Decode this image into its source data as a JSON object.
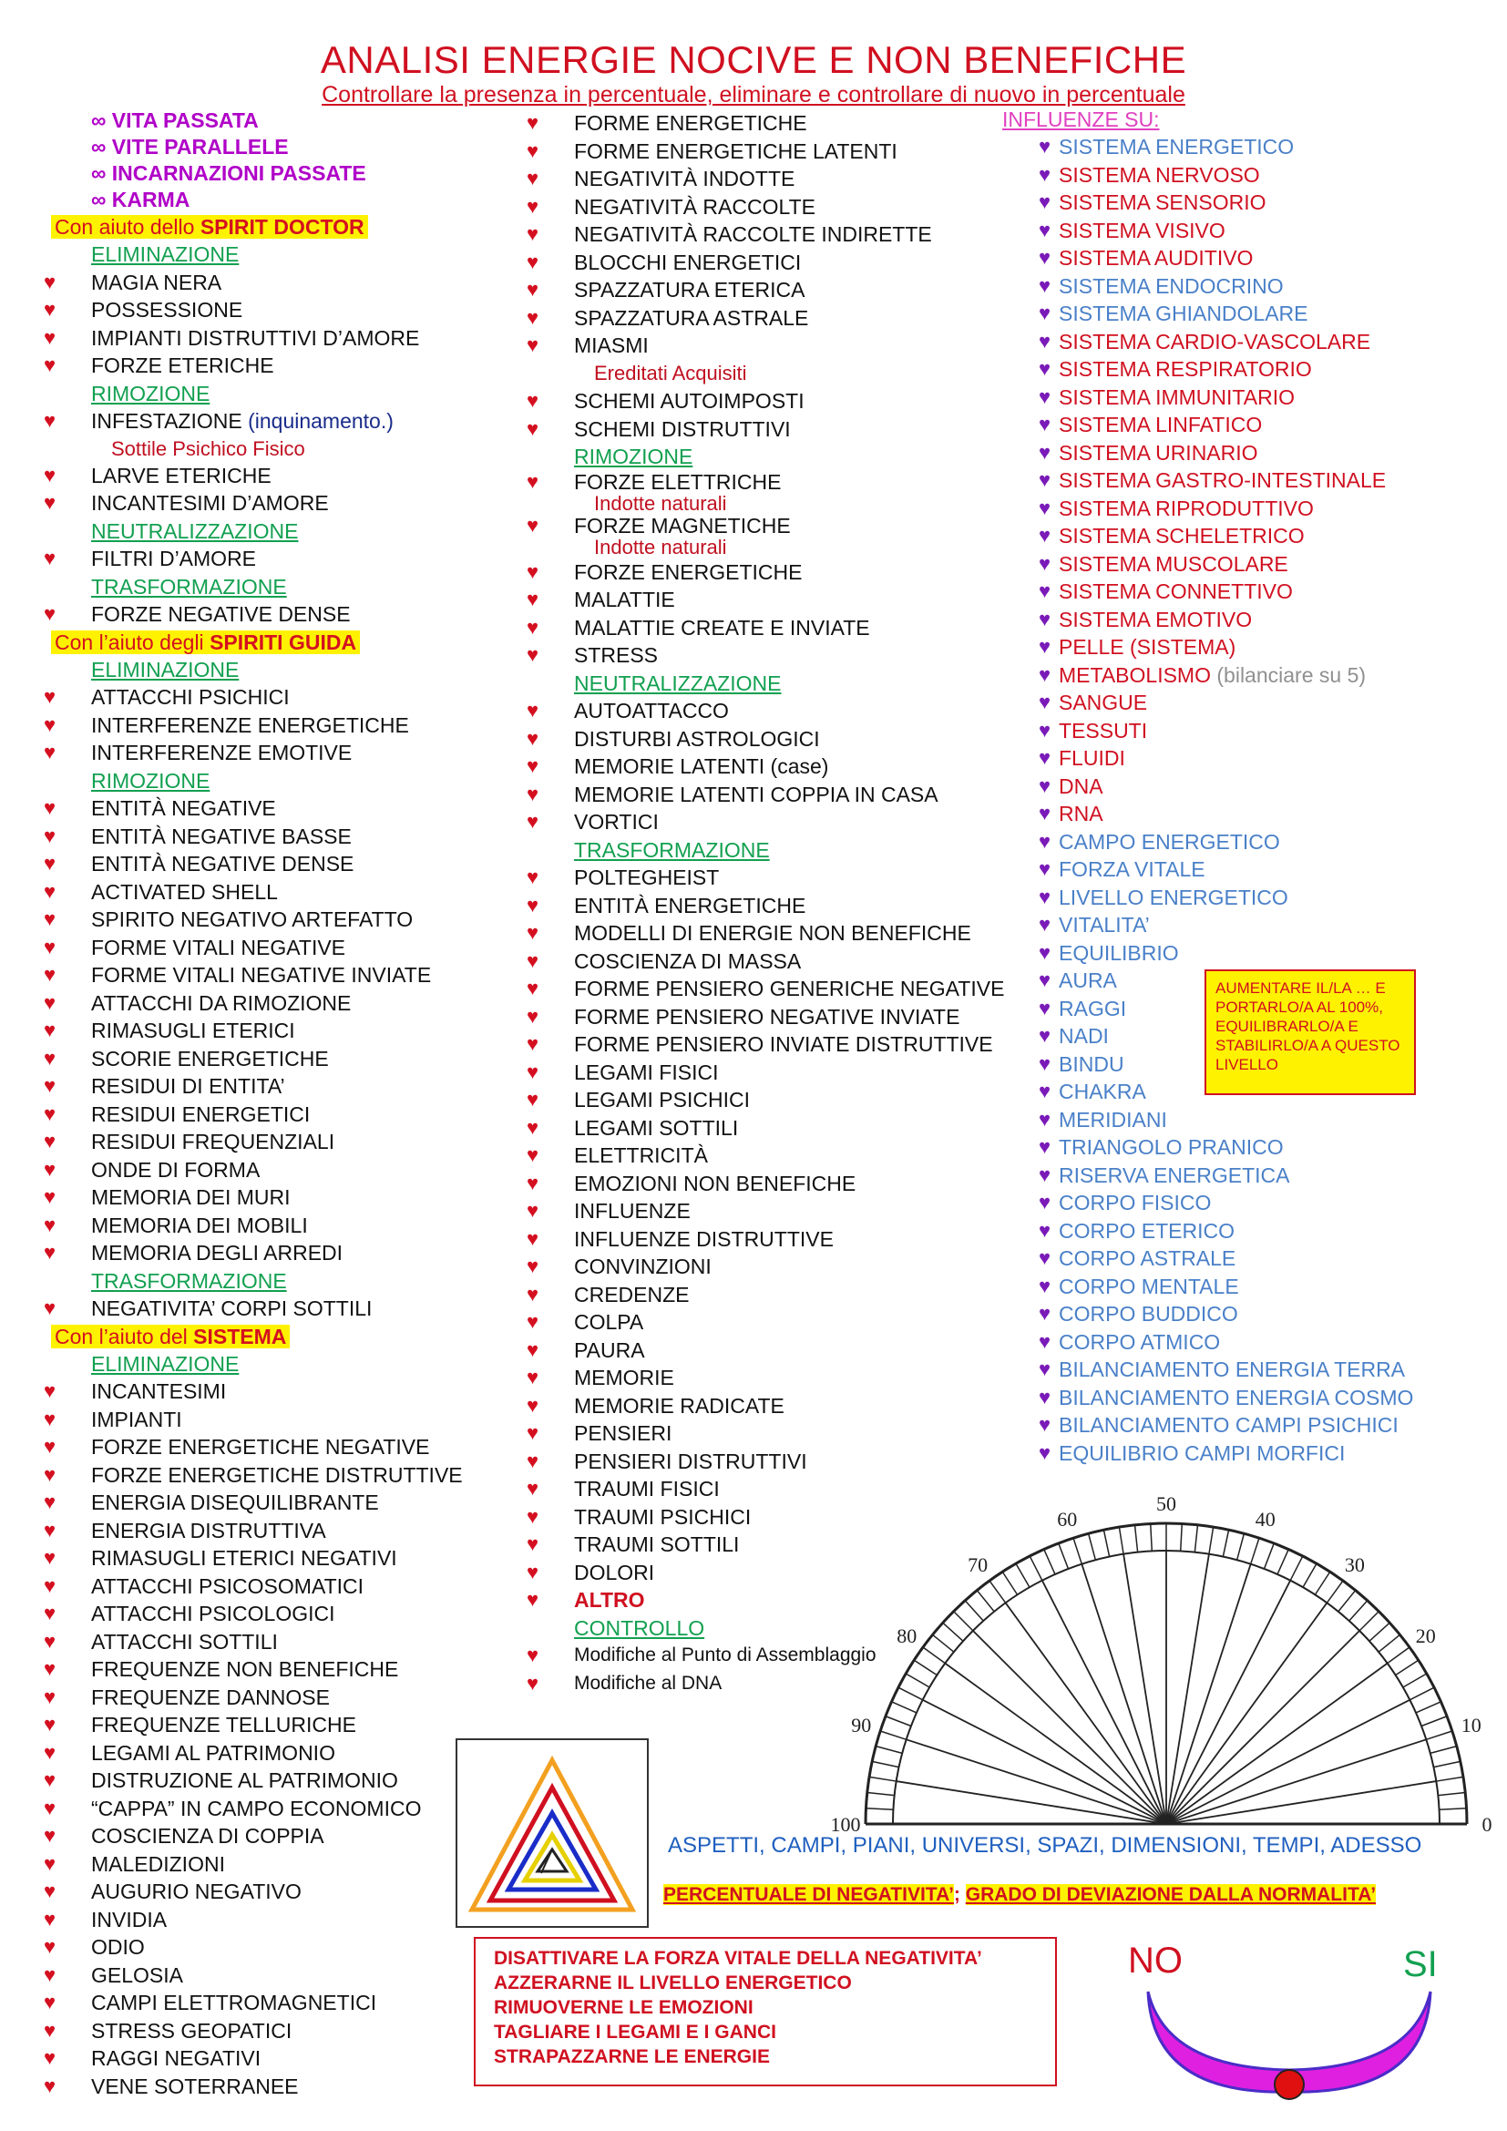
{
  "title": "ANALISI ENERGIE NOCIVE E NON BENEFICHE",
  "subtitle": "Controllare la presenza in percentuale, eliminare e controllare di nuovo in percentuale",
  "col1": {
    "intro": [
      "∞ VITA PASSATA",
      "∞ VITE PARALLELE",
      "∞ INCARNAZIONI PASSATE",
      "∞ KARMA"
    ],
    "tag1_prefix": "Con aiuto dello ",
    "tag1_bold": "SPIRIT DOCTOR",
    "elim1": "ELIMINAZIONE",
    "items_a": [
      "MAGIA NERA",
      "POSSESSIONE",
      "IMPIANTI DISTRUTTIVI D’AMORE",
      "FORZE ETERICHE"
    ],
    "rim1": "RIMOZIONE",
    "infest": "INFESTAZIONE",
    "infest_paren": "(inquinamento.)",
    "infest_sub": "Sottile    Psichico    Fisico",
    "items_b": [
      "LARVE ETERICHE",
      "INCANTESIMI D’AMORE"
    ],
    "neut1": "NEUTRALIZZAZIONE",
    "items_c": [
      "FILTRI D’AMORE"
    ],
    "trasf1": "TRASFORMAZIONE",
    "items_d": [
      "FORZE NEGATIVE DENSE"
    ],
    "tag2_prefix": "Con l’aiuto degli ",
    "tag2_bold": "SPIRITI GUIDA",
    "elim2": "ELIMINAZIONE",
    "items_e": [
      "ATTACCHI PSICHICI",
      "INTERFERENZE ENERGETICHE",
      "INTERFERENZE EMOTIVE"
    ],
    "rim2": "RIMOZIONE",
    "items_f": [
      "ENTITÀ NEGATIVE",
      "ENTITÀ NEGATIVE BASSE",
      "ENTITÀ NEGATIVE DENSE",
      "ACTIVATED SHELL",
      "SPIRITO NEGATIVO ARTEFATTO",
      "FORME VITALI NEGATIVE",
      "FORME VITALI NEGATIVE INVIATE",
      "ATTACCHI DA RIMOZIONE",
      "RIMASUGLI ETERICI",
      "SCORIE ENERGETICHE",
      "RESIDUI DI ENTITA’",
      "RESIDUI ENERGETICI",
      "RESIDUI FREQUENZIALI",
      "ONDE DI FORMA",
      "MEMORIA DEI MURI",
      "MEMORIA DEI MOBILI",
      "MEMORIA DEGLI ARREDI"
    ],
    "trasf2": "TRASFORMAZIONE",
    "items_g": [
      "NEGATIVITA’ CORPI SOTTILI"
    ],
    "tag3_prefix": "Con l’aiuto del ",
    "tag3_bold": "SISTEMA",
    "elim3": "ELIMINAZIONE",
    "items_h": [
      "INCANTESIMI",
      "IMPIANTI",
      "FORZE ENERGETICHE NEGATIVE",
      "FORZE ENERGETICHE DISTRUTTIVE",
      "ENERGIA DISEQUILIBRANTE",
      "ENERGIA DISTRUTTIVA",
      "RIMASUGLI ETERICI NEGATIVI",
      "ATTACCHI PSICOSOMATICI",
      "ATTACCHI PSICOLOGICI",
      "ATTACCHI SOTTILI",
      "FREQUENZE NON BENEFICHE",
      "FREQUENZE DANNOSE",
      "FREQUENZE TELLURICHE",
      "LEGAMI AL PATRIMONIO",
      "DISTRUZIONE AL PATRIMONIO",
      "“CAPPA” IN CAMPO ECONOMICO",
      "COSCIENZA DI COPPIA",
      "MALEDIZIONI",
      "AUGURIO NEGATIVO",
      "INVIDIA",
      "ODIO",
      "GELOSIA",
      "CAMPI ELETTROMAGNETICI",
      "STRESS GEOPATICI",
      "RAGGI NEGATIVI",
      "VENE SOTERRANEE"
    ]
  },
  "col2": {
    "items_a": [
      "FORME ENERGETICHE",
      "FORME ENERGETICHE LATENTI",
      "NEGATIVITÀ INDOTTE",
      "NEGATIVITÀ RACCOLTE",
      "NEGATIVITÀ RACCOLTE INDIRETTE",
      "BLOCCHI ENERGETICI",
      "SPAZZATURA ETERICA",
      "SPAZZATURA ASTRALE",
      "MIASMI"
    ],
    "miasmi_sub": "Ereditati     Acquisiti",
    "items_b": [
      "SCHEMI AUTOIMPOSTI",
      "SCHEMI DISTRUTTIVI"
    ],
    "rim": "RIMOZIONE",
    "elettriche": "FORZE ELETTRICHE",
    "elettriche_sub": "Indotte       naturali",
    "magnetiche": "FORZE MAGNETICHE",
    "magnetiche_sub": "Indotte       naturali",
    "items_c": [
      "FORZE ENERGETICHE",
      "MALATTIE",
      "MALATTIE CREATE E INVIATE",
      "STRESS"
    ],
    "neut": "NEUTRALIZZAZIONE",
    "items_d": [
      "AUTOATTACCO",
      "DISTURBI ASTROLOGICI",
      "MEMORIE LATENTI (case)",
      "MEMORIE LATENTI COPPIA IN CASA",
      "VORTICI"
    ],
    "trasf": "TRASFORMAZIONE",
    "items_e": [
      "POLTEGHEIST",
      "ENTITÀ ENERGETICHE",
      "MODELLI DI ENERGIE NON BENEFICHE",
      "COSCIENZA DI MASSA",
      "FORME PENSIERO GENERICHE NEGATIVE",
      "FORME PENSIERO NEGATIVE INVIATE",
      "FORME PENSIERO INVIATE DISTRUTTIVE",
      "LEGAMI FISICI",
      "LEGAMI PSICHICI",
      "LEGAMI SOTTILI",
      "ELETTRICITÀ",
      "EMOZIONI NON BENEFICHE",
      "INFLUENZE",
      "INFLUENZE DISTRUTTIVE",
      "CONVINZIONI",
      "CREDENZE",
      "COLPA",
      "PAURA",
      "MEMORIE",
      "MEMORIE RADICATE",
      "PENSIERI",
      "PENSIERI DISTRUTTIVI",
      "TRAUMI FISICI",
      "TRAUMI PSICHICI",
      "TRAUMI SOTTILI",
      "DOLORI"
    ],
    "altro": "ALTRO",
    "controllo": "CONTROLLO",
    "items_f": [
      "Modifiche al Punto di Assemblaggio",
      "Modifiche al DNA"
    ]
  },
  "col3": {
    "header": "INFLUENZE SU:",
    "items": [
      {
        "t": "SISTEMA ENERGETICO",
        "c": "blue"
      },
      {
        "t": "SISTEMA NERVOSO",
        "c": "red"
      },
      {
        "t": "SISTEMA SENSORIO",
        "c": "red"
      },
      {
        "t": "SISTEMA VISIVO",
        "c": "red"
      },
      {
        "t": "SISTEMA AUDITIVO",
        "c": "red"
      },
      {
        "t": "SISTEMA ENDOCRINO",
        "c": "blue"
      },
      {
        "t": "SISTEMA GHIANDOLARE",
        "c": "blue"
      },
      {
        "t": "SISTEMA CARDIO-VASCOLARE",
        "c": "red"
      },
      {
        "t": "SISTEMA RESPIRATORIO",
        "c": "red"
      },
      {
        "t": "SISTEMA IMMUNITARIO",
        "c": "red"
      },
      {
        "t": "SISTEMA LINFATICO",
        "c": "red"
      },
      {
        "t": "SISTEMA URINARIO",
        "c": "red"
      },
      {
        "t": "SISTEMA GASTRO-INTESTINALE",
        "c": "red"
      },
      {
        "t": "SISTEMA RIPRODUTTIVO",
        "c": "red"
      },
      {
        "t": "SISTEMA SCHELETRICO",
        "c": "red"
      },
      {
        "t": "SISTEMA MUSCOLARE",
        "c": "red"
      },
      {
        "t": "SISTEMA CONNETTIVO",
        "c": "red"
      },
      {
        "t": "SISTEMA EMOTIVO",
        "c": "red"
      },
      {
        "t": "PELLE (SISTEMA)",
        "c": "red"
      },
      {
        "t": "METABOLISMO",
        "c": "red",
        "extra": "(bilanciare su 5)"
      },
      {
        "t": "SANGUE",
        "c": "red"
      },
      {
        "t": "TESSUTI",
        "c": "red"
      },
      {
        "t": "FLUIDI",
        "c": "red"
      },
      {
        "t": "DNA",
        "c": "red"
      },
      {
        "t": "RNA",
        "c": "red"
      },
      {
        "t": "CAMPO ENERGETICO",
        "c": "blue"
      },
      {
        "t": "FORZA VITALE",
        "c": "blue"
      },
      {
        "t": "LIVELLO ENERGETICO",
        "c": "blue"
      },
      {
        "t": "VITALITA’",
        "c": "blue"
      },
      {
        "t": "EQUILIBRIO",
        "c": "blue"
      },
      {
        "t": "AURA",
        "c": "blue"
      },
      {
        "t": "RAGGI",
        "c": "blue"
      },
      {
        "t": "NADI",
        "c": "blue"
      },
      {
        "t": "BINDU",
        "c": "blue"
      },
      {
        "t": "CHAKRA",
        "c": "blue"
      },
      {
        "t": "MERIDIANI",
        "c": "blue"
      },
      {
        "t": "TRIANGOLO PRANICO",
        "c": "blue"
      },
      {
        "t": "RISERVA ENERGETICA",
        "c": "blue"
      },
      {
        "t": "CORPO FISICO",
        "c": "blue"
      },
      {
        "t": "CORPO ETERICO",
        "c": "blue"
      },
      {
        "t": "CORPO ASTRALE",
        "c": "blue"
      },
      {
        "t": "CORPO MENTALE",
        "c": "blue"
      },
      {
        "t": "CORPO BUDDICO",
        "c": "blue"
      },
      {
        "t": "CORPO ATMICO",
        "c": "blue"
      },
      {
        "t": "BILANCIAMENTO ENERGIA TERRA",
        "c": "blue"
      },
      {
        "t": "BILANCIAMENTO ENERGIA COSMO",
        "c": "blue"
      },
      {
        "t": "BILANCIAMENTO CAMPI PSICHICI",
        "c": "blue"
      },
      {
        "t": "EQUILIBRIO CAMPI MORFICI",
        "c": "blue"
      }
    ]
  },
  "note_box": "AUMENTARE IL/LA … E PORTARLO/A AL 100%, EQUILIBRARLO/A  E STABILIRLO/A A QUESTO LIVELLO",
  "dial_labels": [
    "0",
    "10",
    "20",
    "30",
    "40",
    "50",
    "60",
    "70",
    "80",
    "90",
    "100"
  ],
  "aspetti": "ASPETTI, CAMPI, PIANI, UNIVERSI, SPAZI, DIMENSIONI, TEMPI, ADESSO",
  "perc_a": "PERCENTUALE DI NEGATIVITA’",
  "perc_sep": "; ",
  "perc_b": "GRADO DI DEVIAZIONE DALLA NORMALITA’",
  "disattiva": [
    "DISATTIVARE LA FORZA VITALE DELLA NEGATIVITA’",
    "AZZERARNE  IL LIVELLO ENERGETICO",
    "RIMUOVERNE LE EMOZIONI",
    "TAGLIARE I LEGAMI E I GANCI",
    "STRAPAZZARNE LE ENERGIE"
  ],
  "no": "NO",
  "si": "SI",
  "colors": {
    "red": "#d01020",
    "green": "#12a050",
    "blue": "#4a80c8",
    "magenta": "#b000c8",
    "yellow": "#fff200",
    "pink": "#e040c0"
  }
}
